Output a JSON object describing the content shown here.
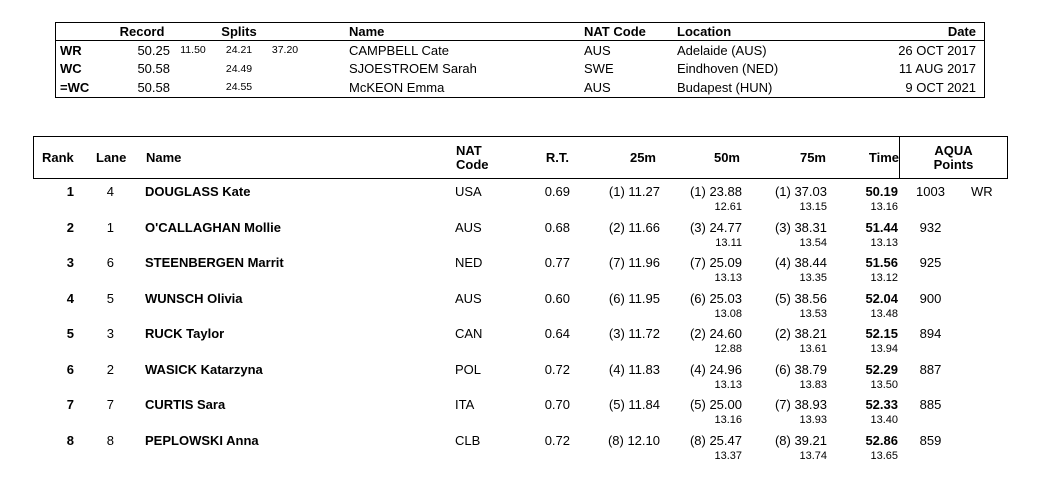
{
  "records": {
    "headers": {
      "record": "Record",
      "splits": "Splits",
      "name": "Name",
      "nat": "NAT Code",
      "location": "Location",
      "date": "Date"
    },
    "rows": [
      {
        "label": "WR",
        "record": "50.25",
        "split1": "11.50",
        "split2": "24.21",
        "split3": "37.20",
        "name": "CAMPBELL Cate",
        "nat": "AUS",
        "location": "Adelaide (AUS)",
        "date": "26 OCT 2017"
      },
      {
        "label": "WC",
        "record": "50.58",
        "split1": "",
        "split2": "24.49",
        "split3": "",
        "name": "SJOESTROEM Sarah",
        "nat": "SWE",
        "location": "Eindhoven (NED)",
        "date": "11 AUG 2017"
      },
      {
        "label": "=WC",
        "record": "50.58",
        "split1": "",
        "split2": "24.55",
        "split3": "",
        "name": "McKEON Emma",
        "nat": "AUS",
        "location": "Budapest (HUN)",
        "date": "9 OCT 2021"
      }
    ]
  },
  "results": {
    "headers": {
      "rank": "Rank",
      "lane": "Lane",
      "name": "Name",
      "nat1": "NAT",
      "nat2": "Code",
      "rt": "R.T.",
      "m25": "25m",
      "m50": "50m",
      "m75": "75m",
      "time": "Time",
      "aqua1": "AQUA",
      "aqua2": "Points"
    },
    "rows": [
      {
        "rank": "1",
        "lane": "4",
        "name": "DOUGLASS Kate",
        "nat": "USA",
        "rt": "0.69",
        "m25": "(1) 11.27",
        "m50": "(1) 23.88",
        "m50_split": "12.61",
        "m75": "(1) 37.03",
        "m75_split": "13.15",
        "time": "50.19",
        "time_split": "13.16",
        "points": "1003",
        "tag": "WR"
      },
      {
        "rank": "2",
        "lane": "1",
        "name": "O'CALLAGHAN Mollie",
        "nat": "AUS",
        "rt": "0.68",
        "m25": "(2) 11.66",
        "m50": "(3) 24.77",
        "m50_split": "13.11",
        "m75": "(3) 38.31",
        "m75_split": "13.54",
        "time": "51.44",
        "time_split": "13.13",
        "points": "932",
        "tag": ""
      },
      {
        "rank": "3",
        "lane": "6",
        "name": "STEENBERGEN Marrit",
        "nat": "NED",
        "rt": "0.77",
        "m25": "(7) 11.96",
        "m50": "(7) 25.09",
        "m50_split": "13.13",
        "m75": "(4) 38.44",
        "m75_split": "13.35",
        "time": "51.56",
        "time_split": "13.12",
        "points": "925",
        "tag": ""
      },
      {
        "rank": "4",
        "lane": "5",
        "name": "WUNSCH Olivia",
        "nat": "AUS",
        "rt": "0.60",
        "m25": "(6) 11.95",
        "m50": "(6) 25.03",
        "m50_split": "13.08",
        "m75": "(5) 38.56",
        "m75_split": "13.53",
        "time": "52.04",
        "time_split": "13.48",
        "points": "900",
        "tag": ""
      },
      {
        "rank": "5",
        "lane": "3",
        "name": "RUCK Taylor",
        "nat": "CAN",
        "rt": "0.64",
        "m25": "(3) 11.72",
        "m50": "(2) 24.60",
        "m50_split": "12.88",
        "m75": "(2) 38.21",
        "m75_split": "13.61",
        "time": "52.15",
        "time_split": "13.94",
        "points": "894",
        "tag": ""
      },
      {
        "rank": "6",
        "lane": "2",
        "name": "WASICK Katarzyna",
        "nat": "POL",
        "rt": "0.72",
        "m25": "(4) 11.83",
        "m50": "(4) 24.96",
        "m50_split": "13.13",
        "m75": "(6) 38.79",
        "m75_split": "13.83",
        "time": "52.29",
        "time_split": "13.50",
        "points": "887",
        "tag": ""
      },
      {
        "rank": "7",
        "lane": "7",
        "name": "CURTIS Sara",
        "nat": "ITA",
        "rt": "0.70",
        "m25": "(5) 11.84",
        "m50": "(5) 25.00",
        "m50_split": "13.16",
        "m75": "(7) 38.93",
        "m75_split": "13.93",
        "time": "52.33",
        "time_split": "13.40",
        "points": "885",
        "tag": ""
      },
      {
        "rank": "8",
        "lane": "8",
        "name": "PEPLOWSKI Anna",
        "nat": "CLB",
        "rt": "0.72",
        "m25": "(8) 12.10",
        "m50": "(8) 25.47",
        "m50_split": "13.37",
        "m75": "(8) 39.21",
        "m75_split": "13.74",
        "time": "52.86",
        "time_split": "13.65",
        "points": "859",
        "tag": ""
      }
    ]
  }
}
